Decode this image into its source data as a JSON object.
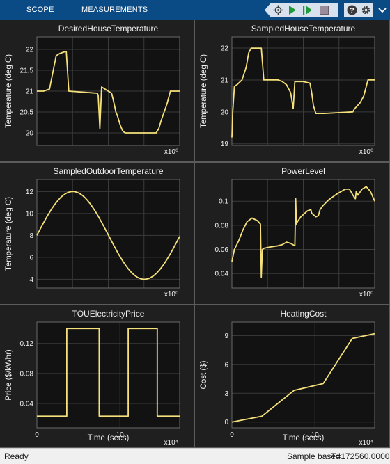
{
  "toolbar": {
    "tabs": [
      {
        "label": "SCOPE"
      },
      {
        "label": "MEASUREMENTS"
      }
    ],
    "icons": [
      "step-back-icon",
      "run-icon",
      "step-forward-icon",
      "stop-icon",
      "help-icon",
      "settings-icon",
      "chevron-down-icon"
    ]
  },
  "colors": {
    "toolbar_bg": "#0a4a85",
    "plot_bg": "#121212",
    "panel_bg": "#1f1f1f",
    "trace": "#f5e07a",
    "grid": "#3b3b3b"
  },
  "chart_data": [
    {
      "id": "desired-house-temperature",
      "type": "line",
      "title": "DesiredHouseTemperature",
      "ylabel": "Temperature (deg C)",
      "xlabel": "",
      "x_exponent": "x10⁰",
      "xlim": [
        0,
        17
      ],
      "ylim": [
        19.7,
        22.3
      ],
      "yticks": [
        20,
        20.5,
        21,
        21.5,
        22
      ],
      "xticks": [],
      "grid": true,
      "series": [
        {
          "x": [
            0,
            0.8,
            1.5,
            1.7,
            2.3,
            2.7,
            3.4,
            3.5,
            3.8,
            7.2,
            7.3,
            7.5,
            7.7,
            8.9,
            9.2,
            9.4,
            9.6,
            9.9,
            10.2,
            10.5,
            10.8,
            11.3,
            14.2,
            14.5,
            14.8,
            15.5,
            15.9,
            16.3,
            17
          ],
          "y": [
            21,
            21,
            21.05,
            21.25,
            21.85,
            21.9,
            21.95,
            21.95,
            21,
            20.95,
            20.9,
            20.1,
            21.1,
            20.95,
            20.7,
            20.5,
            20.4,
            20.2,
            20.05,
            20,
            20,
            20,
            20,
            20.1,
            20.3,
            20.7,
            21,
            21,
            21
          ]
        }
      ]
    },
    {
      "id": "sampled-house-temperature",
      "type": "line",
      "title": "SampledHouseTemperature",
      "ylabel": "Temperature (deg C)",
      "xlabel": "",
      "x_exponent": "x10⁰",
      "xlim": [
        0,
        17
      ],
      "ylim": [
        18.95,
        22.35
      ],
      "yticks": [
        19,
        20,
        21,
        22
      ],
      "xticks": [],
      "grid": true,
      "series": [
        {
          "x": [
            0,
            0.1,
            0.3,
            0.6,
            1.2,
            1.7,
            2.0,
            2.3,
            3.4,
            3.5,
            3.8,
            5.5,
            6.0,
            6.5,
            7.0,
            7.3,
            7.5,
            7.7,
            8.5,
            9.3,
            9.5,
            9.7,
            10.0,
            10.3,
            11.0,
            14.4,
            14.6,
            14.8,
            15.3,
            15.7,
            16.2,
            17
          ],
          "y": [
            19.2,
            20.0,
            20.8,
            20.85,
            21.0,
            21.4,
            21.85,
            22.0,
            22.0,
            22.0,
            21.0,
            21.0,
            20.95,
            20.85,
            20.6,
            20.1,
            20.95,
            20.95,
            20.95,
            20.9,
            20.6,
            20.2,
            19.95,
            19.95,
            19.95,
            20.0,
            20.1,
            20.15,
            20.3,
            20.5,
            21.0,
            21.0
          ]
        }
      ]
    },
    {
      "id": "sampled-outdoor-temperature",
      "type": "line",
      "title": "SampledOutdoorTemperature",
      "ylabel": "Temperature (deg C)",
      "xlabel": "",
      "x_exponent": "x10⁰",
      "xlim": [
        0,
        17
      ],
      "ylim": [
        3.2,
        13.1
      ],
      "yticks": [
        4,
        6,
        8,
        10,
        12
      ],
      "xticks": [],
      "grid": true,
      "series": [
        {
          "name": "",
          "sine": {
            "offset": 8,
            "amplitude": 4,
            "period": 17.06,
            "phase_shift": 0
          }
        }
      ]
    },
    {
      "id": "power-level",
      "type": "line",
      "title": "PowerLevel",
      "ylabel": "",
      "xlabel": "",
      "x_exponent": "x10⁰",
      "xlim": [
        0,
        17
      ],
      "ylim": [
        0.028,
        0.118
      ],
      "yticks": [
        0.04,
        0.06,
        0.08,
        0.1
      ],
      "xticks": [],
      "grid": true,
      "series": [
        {
          "x": [
            0,
            0.3,
            0.8,
            1.3,
            1.8,
            2.4,
            3.0,
            3.4,
            3.5,
            3.62,
            3.85,
            4.5,
            5.5,
            6.0,
            6.5,
            7.0,
            7.5,
            7.6,
            7.68,
            7.8,
            8.2,
            9.0,
            9.4,
            9.5,
            10.0,
            10.3,
            10.5,
            10.8,
            11.5,
            12.5,
            13.5,
            14.0,
            14.5,
            14.7,
            14.8,
            15.0,
            15.5,
            16.0,
            16.5,
            17
          ],
          "y": [
            0.05,
            0.06,
            0.067,
            0.076,
            0.083,
            0.086,
            0.084,
            0.081,
            0.037,
            0.06,
            0.061,
            0.062,
            0.063,
            0.064,
            0.066,
            0.065,
            0.063,
            0.102,
            0.081,
            0.083,
            0.087,
            0.092,
            0.093,
            0.09,
            0.087,
            0.088,
            0.093,
            0.096,
            0.101,
            0.106,
            0.11,
            0.11,
            0.104,
            0.102,
            0.108,
            0.105,
            0.11,
            0.112,
            0.108,
            0.1
          ]
        }
      ]
    },
    {
      "id": "tou-electricity-price",
      "type": "line",
      "title": "TOUElectricityPrice",
      "ylabel": "Price ($/kWhr)",
      "xlabel": "Time (secs)",
      "x_exponent": "x10⁴",
      "xlim": [
        0,
        17.2
      ],
      "ylim": [
        0.0075,
        0.1485
      ],
      "xticks": [
        0,
        10
      ],
      "yticks": [
        0.04,
        0.08,
        0.12
      ],
      "grid": true,
      "series": [
        {
          "x": [
            0,
            3.6,
            3.6,
            7.5,
            7.5,
            11,
            11,
            14.5,
            14.5,
            17.2
          ],
          "y": [
            0.023,
            0.023,
            0.14,
            0.14,
            0.023,
            0.023,
            0.14,
            0.14,
            0.023,
            0.023
          ]
        }
      ]
    },
    {
      "id": "heating-cost",
      "type": "line",
      "title": "HeatingCost",
      "ylabel": "Cost ($)",
      "xlabel": "Time (secs)",
      "x_exponent": "x10⁴",
      "xlim": [
        0,
        17.2
      ],
      "ylim": [
        -0.6,
        10.4
      ],
      "xticks": [
        0,
        10
      ],
      "yticks": [
        0,
        3,
        6,
        9
      ],
      "grid": true,
      "series": [
        {
          "x": [
            0,
            3.6,
            7.5,
            11,
            14.5,
            17.2
          ],
          "y": [
            0,
            0.6,
            3.3,
            4.0,
            8.7,
            9.2
          ]
        }
      ]
    }
  ],
  "status": {
    "left": "Ready",
    "mode": "Sample based",
    "time": "T=172560.0000"
  }
}
